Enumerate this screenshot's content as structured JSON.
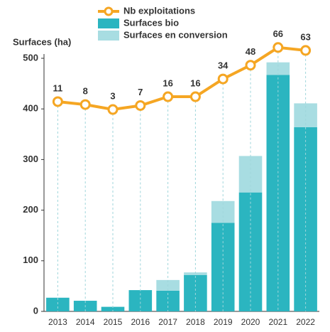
{
  "chart_data": {
    "type": "bar",
    "y_label": "Surfaces (ha)",
    "categories": [
      "2013",
      "2014",
      "2015",
      "2016",
      "2017",
      "2018",
      "2019",
      "2020",
      "2021",
      "2022"
    ],
    "series": [
      {
        "name": "Surfaces bio",
        "color": "#2bb5c0",
        "type": "bar",
        "values": [
          27,
          21,
          9,
          42,
          41,
          72,
          175,
          235,
          467,
          364
        ]
      },
      {
        "name": "Surfaces en conversion",
        "color": "#a8dde2",
        "type": "bar",
        "values": [
          0,
          0,
          0,
          0,
          21,
          5,
          43,
          72,
          25,
          47
        ]
      },
      {
        "name": "Nb exploitations",
        "color": "#f5a623",
        "type": "line",
        "axis": "y2",
        "values": [
          11,
          8,
          3,
          7,
          16,
          16,
          34,
          48,
          66,
          63
        ]
      }
    ],
    "ylim": [
      0,
      500
    ],
    "yticks": [
      0,
      100,
      200,
      300,
      400,
      500
    ],
    "y2lim": [
      -202,
      55
    ]
  }
}
